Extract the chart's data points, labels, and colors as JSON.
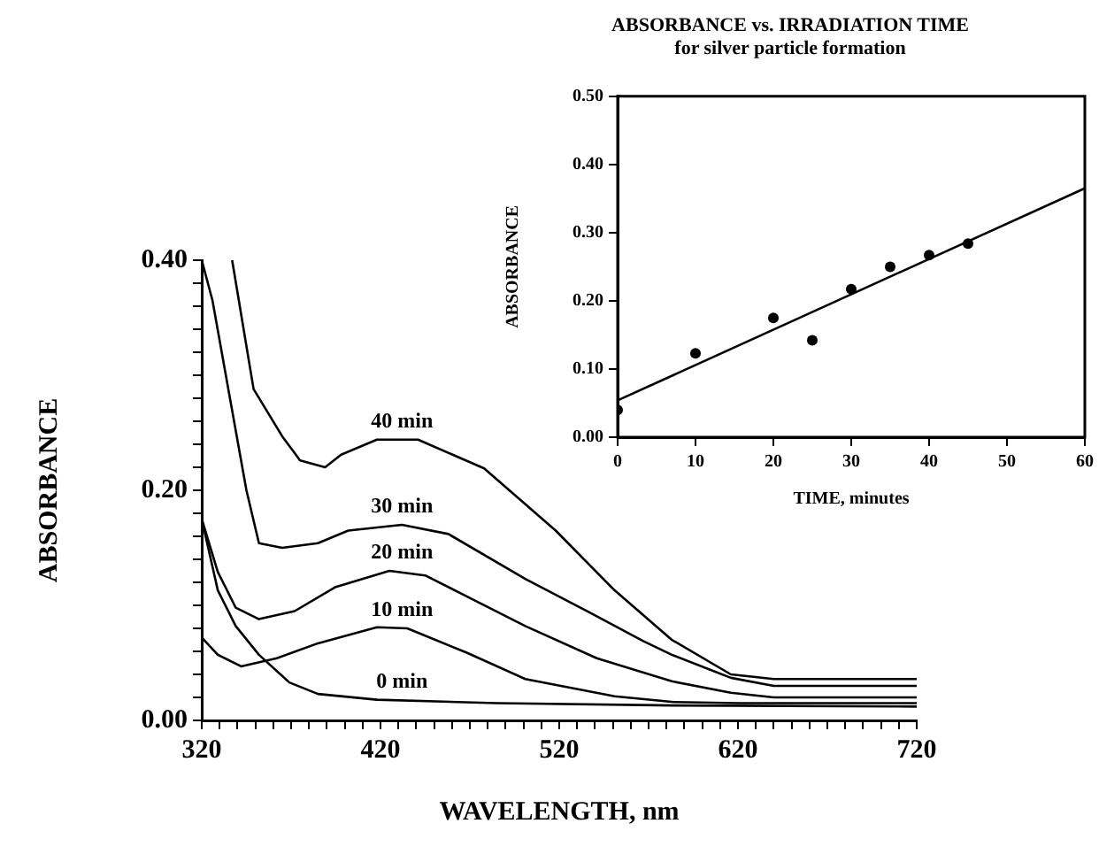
{
  "chart_data": [
    {
      "type": "line",
      "xlabel": "WAVELENGTH, nm",
      "ylabel": "ABSORBANCE",
      "xlim": [
        320,
        720
      ],
      "ylim": [
        0,
        0.4
      ],
      "xticks": [
        320,
        {
          "value": 330,
          "label": null
        },
        {
          "value": 340,
          "label": null
        },
        {
          "value": 350,
          "label": null
        },
        {
          "value": 360,
          "label": null
        },
        {
          "value": 370,
          "label": null
        },
        {
          "value": 380,
          "label": null
        },
        {
          "value": 390,
          "label": null
        },
        {
          "value": 400,
          "label": null
        },
        {
          "value": 410,
          "label": null
        },
        420,
        {
          "value": 430,
          "label": null
        },
        {
          "value": 440,
          "label": null
        },
        {
          "value": 450,
          "label": null
        },
        {
          "value": 460,
          "label": null
        },
        {
          "value": 470,
          "label": null
        },
        {
          "value": 480,
          "label": null
        },
        {
          "value": 490,
          "label": null
        },
        {
          "value": 500,
          "label": null
        },
        {
          "value": 510,
          "label": null
        },
        520,
        {
          "value": 530,
          "label": null
        },
        {
          "value": 540,
          "label": null
        },
        {
          "value": 550,
          "label": null
        },
        {
          "value": 560,
          "label": null
        },
        {
          "value": 570,
          "label": null
        },
        {
          "value": 580,
          "label": null
        },
        {
          "value": 590,
          "label": null
        },
        {
          "value": 600,
          "label": null
        },
        {
          "value": 610,
          "label": null
        },
        620,
        {
          "value": 630,
          "label": null
        },
        {
          "value": 640,
          "label": null
        },
        {
          "value": 650,
          "label": null
        },
        {
          "value": 660,
          "label": null
        },
        {
          "value": 670,
          "label": null
        },
        {
          "value": 680,
          "label": null
        },
        {
          "value": 690,
          "label": null
        },
        {
          "value": 700,
          "label": null
        },
        {
          "value": 710,
          "label": null
        },
        720
      ],
      "yticks": [
        {
          "value": 0,
          "label": "0.00"
        },
        {
          "value": 0.02,
          "label": null
        },
        {
          "value": 0.04,
          "label": null
        },
        {
          "value": 0.06,
          "label": null
        },
        {
          "value": 0.08,
          "label": null
        },
        {
          "value": 0.1,
          "label": null
        },
        {
          "value": 0.12,
          "label": null
        },
        {
          "value": 0.14,
          "label": null
        },
        {
          "value": 0.16,
          "label": null
        },
        {
          "value": 0.18,
          "label": null
        },
        {
          "value": 0.2,
          "label": "0.20"
        },
        {
          "value": 0.22,
          "label": null
        },
        {
          "value": 0.24,
          "label": null
        },
        {
          "value": 0.26,
          "label": null
        },
        {
          "value": 0.28,
          "label": null
        },
        {
          "value": 0.3,
          "label": null
        },
        {
          "value": 0.32,
          "label": null
        },
        {
          "value": 0.34,
          "label": null
        },
        {
          "value": 0.36,
          "label": null
        },
        {
          "value": 0.38,
          "label": null
        },
        {
          "value": 0.4,
          "label": "0.40"
        }
      ],
      "grid": false,
      "legend": false,
      "marker": "none",
      "line_style": "solid",
      "series": [
        {
          "name": "40 min",
          "color": "#000000",
          "x": [
            337,
            349,
            365,
            375,
            389,
            398,
            418,
            441,
            478,
            518,
            551,
            583,
            616,
            640,
            720
          ],
          "values": [
            0.4,
            0.288,
            0.247,
            0.226,
            0.22,
            0.231,
            0.244,
            0.244,
            0.219,
            0.165,
            0.113,
            0.07,
            0.04,
            0.036,
            0.036
          ]
        },
        {
          "name": "30 min",
          "color": "#000000",
          "x": [
            320,
            326,
            336,
            345,
            352,
            365,
            385,
            402,
            432,
            458,
            501,
            538,
            567,
            583,
            616,
            640,
            720
          ],
          "values": [
            0.4,
            0.365,
            0.278,
            0.2,
            0.154,
            0.15,
            0.154,
            0.165,
            0.17,
            0.162,
            0.123,
            0.093,
            0.069,
            0.057,
            0.037,
            0.03,
            0.03
          ]
        },
        {
          "name": "20 min",
          "color": "#000000",
          "x": [
            320,
            329,
            339,
            352,
            372,
            395,
            425,
            445,
            468,
            501,
            541,
            583,
            616,
            640,
            720
          ],
          "values": [
            0.175,
            0.129,
            0.098,
            0.088,
            0.095,
            0.116,
            0.13,
            0.126,
            0.108,
            0.082,
            0.054,
            0.034,
            0.024,
            0.02,
            0.02
          ]
        },
        {
          "name": "10 min",
          "color": "#000000",
          "x": [
            320,
            329,
            342,
            362,
            385,
            418,
            435,
            468,
            501,
            551,
            584,
            620,
            720
          ],
          "values": [
            0.072,
            0.057,
            0.047,
            0.054,
            0.067,
            0.081,
            0.08,
            0.059,
            0.036,
            0.021,
            0.016,
            0.015,
            0.015
          ]
        },
        {
          "name": "0 min",
          "color": "#000000",
          "x": [
            320,
            329,
            339,
            352,
            369,
            385,
            418,
            485,
            584,
            720
          ],
          "values": [
            0.175,
            0.113,
            0.082,
            0.057,
            0.033,
            0.023,
            0.018,
            0.015,
            0.013,
            0.012
          ]
        }
      ]
    },
    {
      "type": "scatter",
      "title": "ABSORBANCE vs. IRRADIATION TIME",
      "subtitle": "for silver particle formation",
      "xlabel": "TIME, minutes",
      "ylabel": "ABSORBANCE",
      "xlim": [
        0,
        60
      ],
      "ylim": [
        0,
        0.5
      ],
      "xticks": [
        0,
        10,
        20,
        30,
        40,
        50,
        60
      ],
      "yticks": [
        {
          "value": 0,
          "label": "0.00"
        },
        {
          "value": 0.1,
          "label": "0.10"
        },
        {
          "value": 0.2,
          "label": "0.20"
        },
        {
          "value": 0.3,
          "label": "0.30"
        },
        {
          "value": 0.4,
          "label": "0.40"
        },
        {
          "value": 0.5,
          "label": "0.50"
        }
      ],
      "grid": false,
      "legend": false,
      "series": [
        {
          "type": "scatter",
          "color": "#000000",
          "marker": "circle",
          "x": [
            0,
            10,
            20,
            25,
            30,
            35,
            40,
            45
          ],
          "values": [
            0.04,
            0.123,
            0.175,
            0.142,
            0.217,
            0.25,
            0.267,
            0.284
          ]
        },
        {
          "type": "line",
          "color": "#000000",
          "marker": "none",
          "line_style": "solid",
          "x": [
            0,
            60
          ],
          "values": [
            0.054,
            0.365
          ]
        }
      ]
    }
  ]
}
